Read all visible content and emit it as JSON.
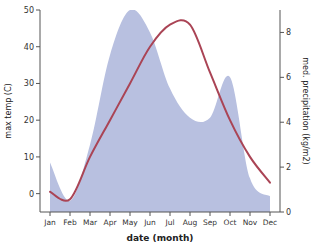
{
  "chart_data": {
    "type": "line",
    "categories": [
      "Jan",
      "Feb",
      "Mar",
      "Apr",
      "May",
      "Jun",
      "Jul",
      "Aug",
      "Sep",
      "Oct",
      "Nov",
      "Dec"
    ],
    "series": [
      {
        "type": "line",
        "color": "#aa4455",
        "values": [
          0.5,
          -1.5,
          10,
          20,
          30,
          40,
          46,
          46,
          33,
          20,
          10,
          3
        ]
      },
      {
        "type": "area",
        "color": "#b8c0e0",
        "axis": "y2",
        "values": [
          2.2,
          0.5,
          3.0,
          7.0,
          9.0,
          8.0,
          5.5,
          4.2,
          4.2,
          6.0,
          1.5,
          0.7
        ]
      }
    ],
    "xlabel": "date (month)",
    "ylabel": "max temp (C)",
    "y2label": "med. precipitation (kg/m2)",
    "ylim": [
      -5,
      50
    ],
    "yticks": [
      0,
      10,
      20,
      30,
      40,
      50
    ],
    "y2lim": [
      0,
      9
    ],
    "y2ticks": [
      0,
      2,
      4,
      6,
      8
    ]
  }
}
